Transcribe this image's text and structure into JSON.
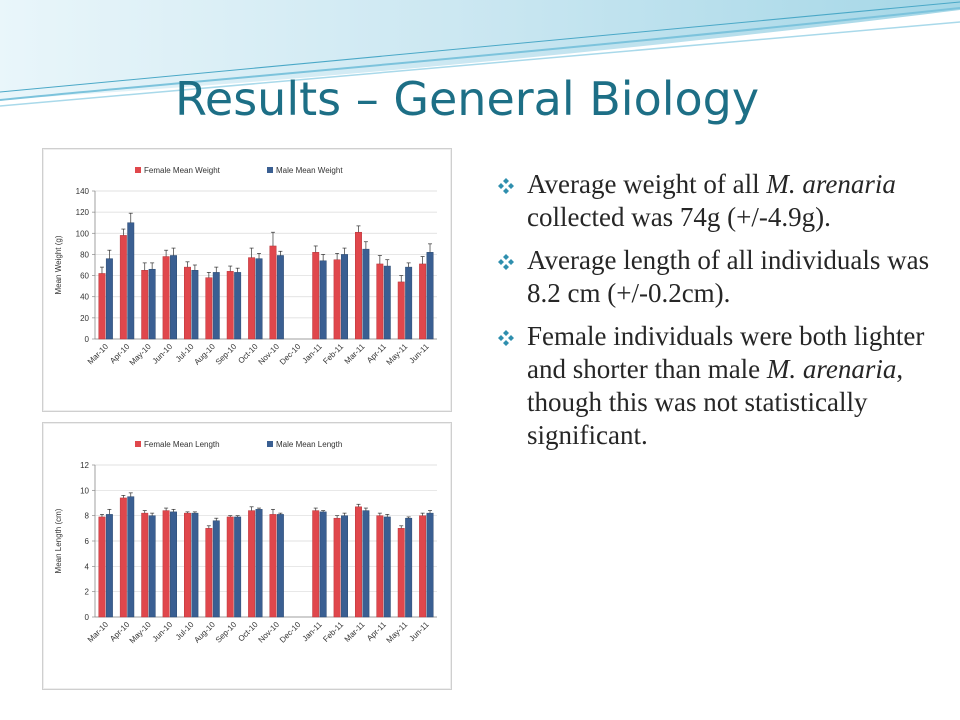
{
  "slide": {
    "title": "Results – General Biology",
    "accent_color": "#1d6f86",
    "bullet_icon": "four-diamond-icon"
  },
  "bullets": [
    {
      "parts": [
        "Average weight of all ",
        "M. arenaria",
        " collected was 74g (+/-4.9g)."
      ]
    },
    {
      "parts": [
        "Average length of all individuals was 8.2 cm (+/-0.2cm)."
      ]
    },
    {
      "parts": [
        "Female individuals were both lighter and shorter than male ",
        "M. arenaria",
        ", though this was not statistically significant."
      ]
    }
  ],
  "chart_data": [
    {
      "type": "bar",
      "title": "",
      "xlabel": "",
      "ylabel": "Mean Weight (g)",
      "ylim": [
        0,
        140
      ],
      "yticks": [
        0,
        20,
        40,
        60,
        80,
        100,
        120,
        140
      ],
      "legend": "top",
      "grid": true,
      "categories": [
        "Mar-10",
        "Apr-10",
        "May-10",
        "Jun-10",
        "Jul-10",
        "Aug-10",
        "Sep-10",
        "Oct-10",
        "Nov-10",
        "Dec-10",
        "Jan-11",
        "Feb-11",
        "Mar-11",
        "Apr-11",
        "May-11",
        "Jun-11"
      ],
      "series": [
        {
          "name": "Female Mean Weight",
          "color": "#e0474c",
          "values": [
            62,
            98,
            65,
            78,
            68,
            58,
            64,
            77,
            88,
            null,
            82,
            75,
            101,
            71,
            54,
            71
          ],
          "errors": [
            6,
            6,
            7,
            6,
            5,
            5,
            5,
            9,
            13,
            null,
            6,
            6,
            6,
            8,
            6,
            7
          ]
        },
        {
          "name": "Male Mean Weight",
          "color": "#3a5f92",
          "values": [
            76,
            110,
            66,
            79,
            65,
            63,
            63,
            76,
            79,
            null,
            74,
            80,
            85,
            69,
            68,
            82
          ],
          "errors": [
            8,
            9,
            6,
            7,
            5,
            5,
            4,
            5,
            4,
            null,
            6,
            6,
            7,
            6,
            4,
            8
          ]
        }
      ]
    },
    {
      "type": "bar",
      "title": "",
      "xlabel": "",
      "ylabel": "Mean Length (cm)",
      "ylim": [
        0,
        12
      ],
      "yticks": [
        0,
        2,
        4,
        6,
        8,
        10,
        12
      ],
      "legend": "top",
      "grid": true,
      "categories": [
        "Mar-10",
        "Apr-10",
        "May-10",
        "Jun-10",
        "Jul-10",
        "Aug-10",
        "Sep-10",
        "Oct-10",
        "Nov-10",
        "Dec-10",
        "Jan-11",
        "Feb-11",
        "Mar-11",
        "Apr-11",
        "May-11",
        "Jun-11"
      ],
      "series": [
        {
          "name": "Female Mean Length",
          "color": "#e0474c",
          "values": [
            7.9,
            9.4,
            8.2,
            8.4,
            8.2,
            7.0,
            7.9,
            8.4,
            8.1,
            null,
            8.4,
            7.8,
            8.7,
            8.0,
            7.0,
            8.0
          ],
          "errors": [
            0.2,
            0.2,
            0.2,
            0.2,
            0.1,
            0.2,
            0.1,
            0.3,
            0.4,
            null,
            0.2,
            0.2,
            0.2,
            0.2,
            0.2,
            0.2
          ]
        },
        {
          "name": "Male Mean Length",
          "color": "#3a5f92",
          "values": [
            8.1,
            9.5,
            8.0,
            8.3,
            8.2,
            7.6,
            7.9,
            8.5,
            8.1,
            null,
            8.3,
            8.0,
            8.4,
            7.9,
            7.8,
            8.2
          ],
          "errors": [
            0.4,
            0.3,
            0.2,
            0.2,
            0.1,
            0.2,
            0.1,
            0.1,
            0.1,
            null,
            0.1,
            0.2,
            0.2,
            0.2,
            0.1,
            0.2
          ]
        }
      ]
    }
  ]
}
